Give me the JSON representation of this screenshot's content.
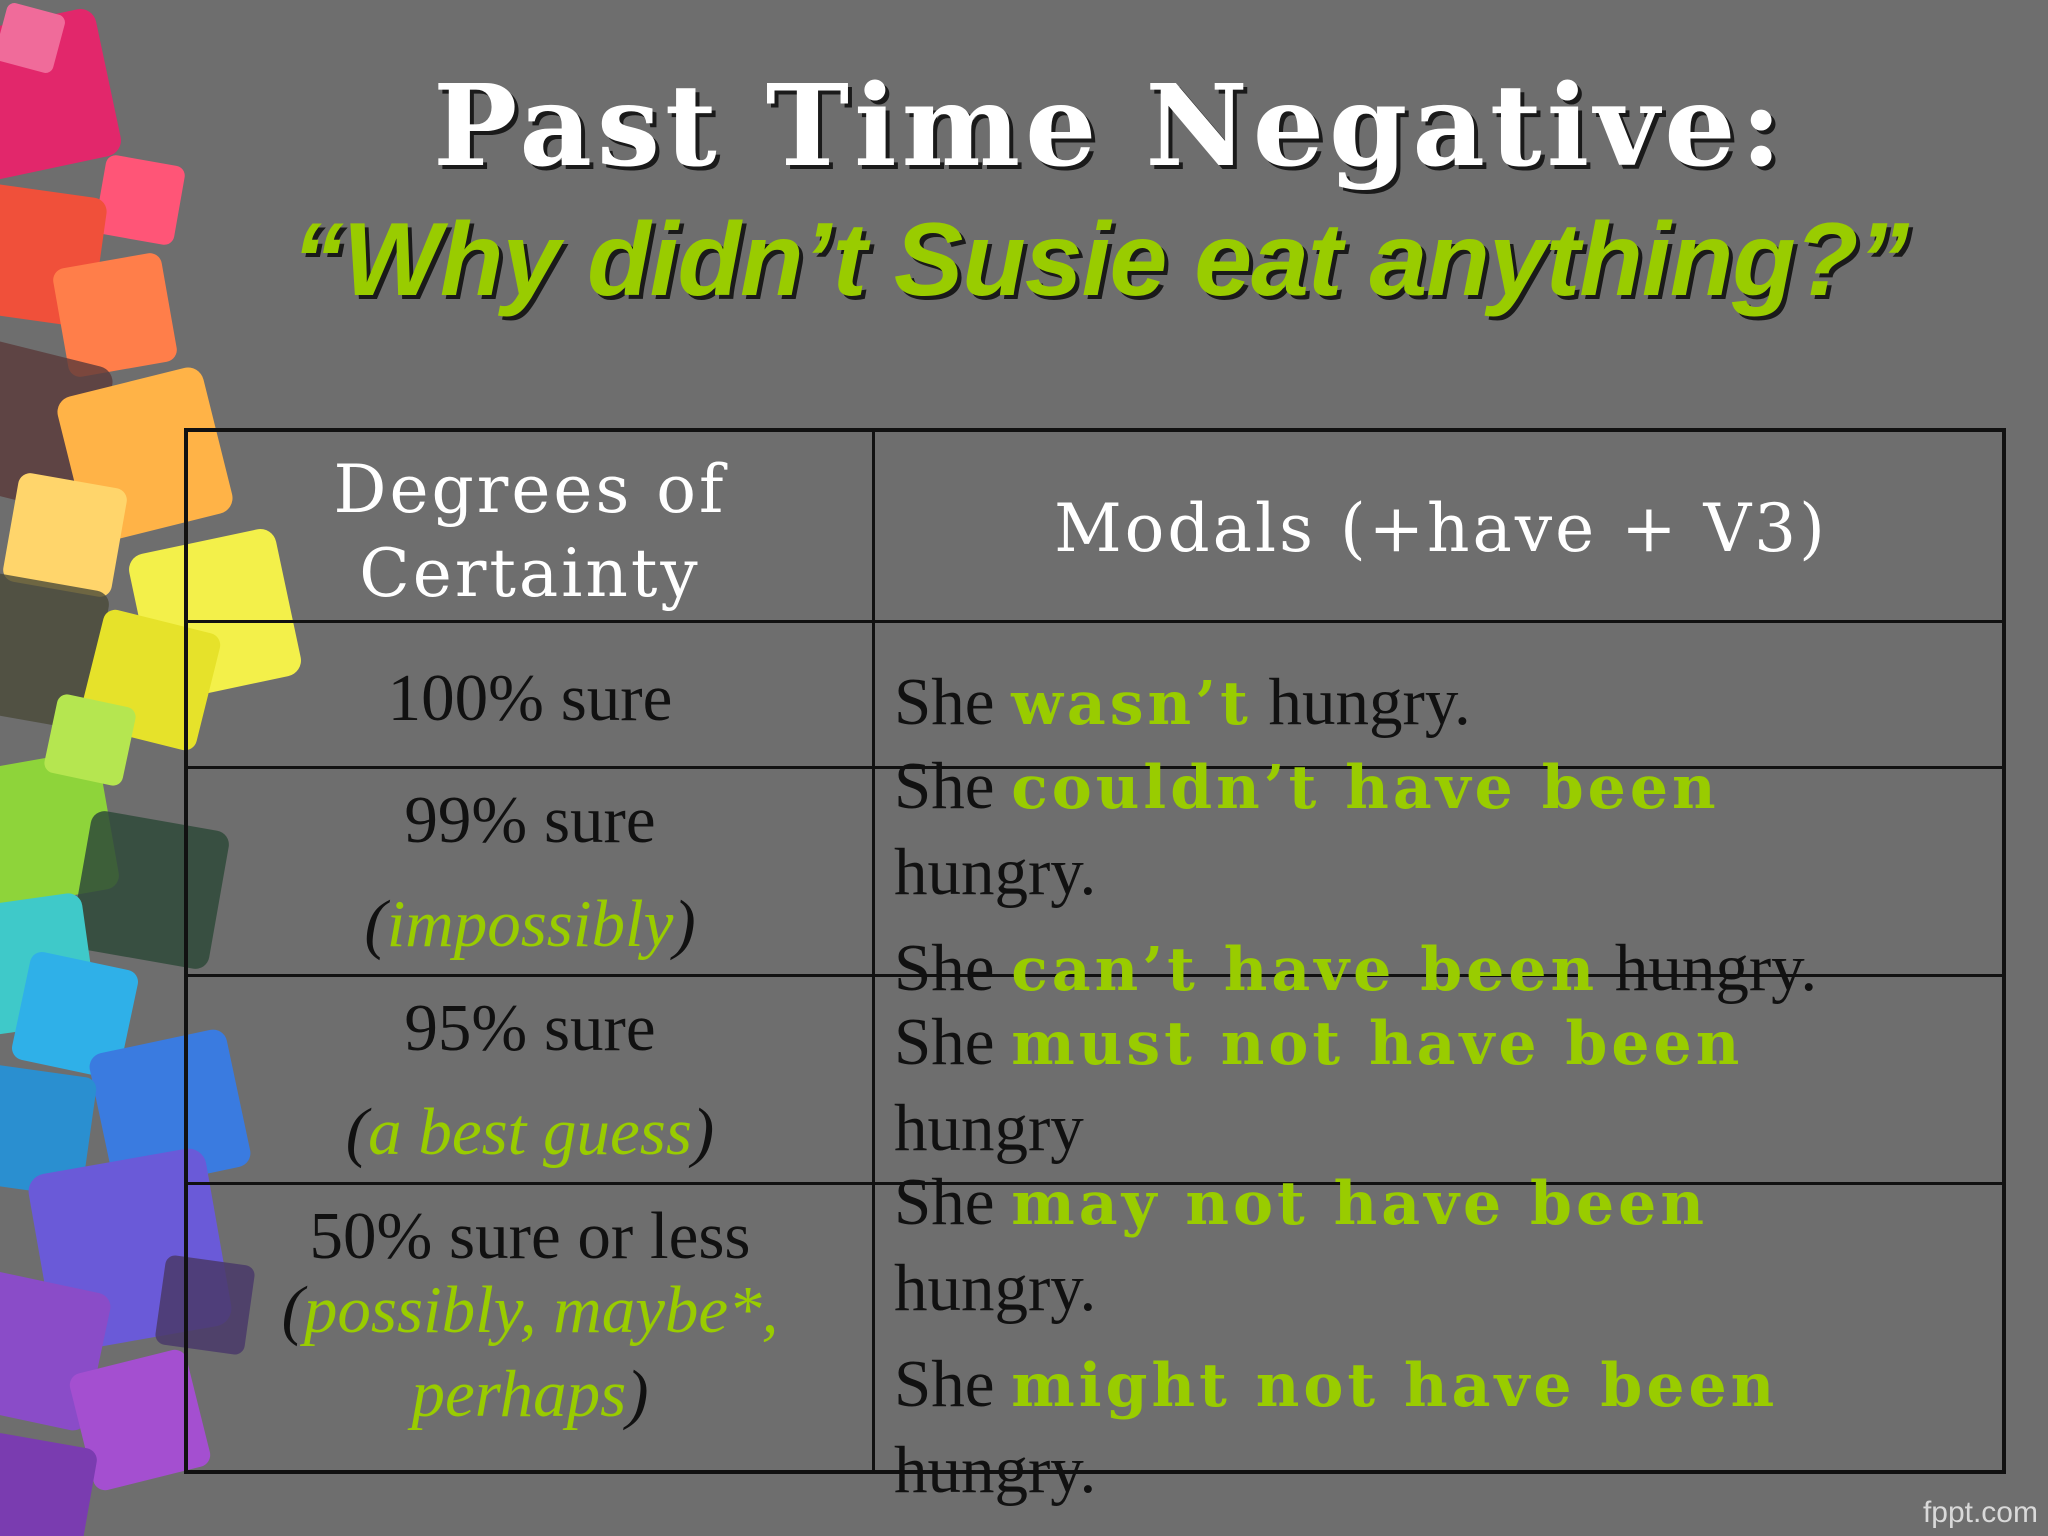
{
  "slide": {
    "title": "Past Time Negative:",
    "subtitle": "“Why didn’t Susie eat anything?”",
    "footer": "fppt.com",
    "accent_color": "#99cc00",
    "background_color": "#6e6e6e"
  },
  "table": {
    "headers": {
      "col1": "Degrees of Certainty",
      "col2": "Modals (+have + V3)"
    },
    "rows": [
      {
        "degree": "100% sure",
        "examples": [
          {
            "subject": "She",
            "modal": "wasn’t",
            "rest": "hungry."
          }
        ]
      },
      {
        "degree": "99% sure",
        "note_open": "(",
        "note": "impossibly",
        "note_close": ")",
        "examples": [
          {
            "subject": "She",
            "modal": "couldn’t have been",
            "rest": "hungry."
          },
          {
            "subject": "She",
            "modal": "can’t have been",
            "rest": "hungry."
          }
        ]
      },
      {
        "degree": "95% sure",
        "note_open": "(",
        "note": "a best guess",
        "note_close": ")",
        "examples": [
          {
            "subject": "She",
            "modal": "must not have been",
            "rest": "hungry"
          }
        ]
      },
      {
        "degree": "50% sure or less",
        "note_open": "(",
        "note_line1": "possibly, maybe*,",
        "note_line2": "perhaps",
        "note_close": ")",
        "examples": [
          {
            "subject": "She",
            "modal": "may not have been",
            "rest": "hungry."
          },
          {
            "subject": "She",
            "modal": "might not have been",
            "rest": "hungry."
          }
        ]
      }
    ]
  },
  "decoration": {
    "background_art": "stacked-cubes-icon"
  }
}
